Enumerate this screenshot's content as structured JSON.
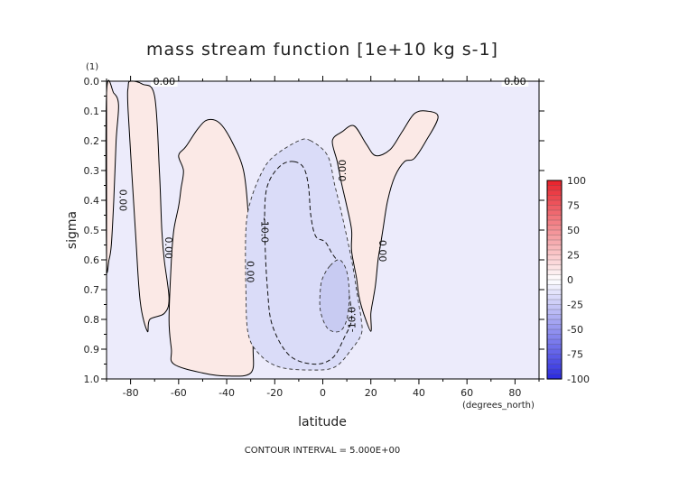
{
  "chart_data": {
    "type": "heatmap",
    "title": "mass stream function [1e+10 kg s-1]",
    "xlabel": "latitude",
    "ylabel": "sigma",
    "x_units": "(degrees_north)",
    "y_units": "(1)",
    "xlim": [
      -90,
      90
    ],
    "ylim": [
      1.0,
      0.0
    ],
    "x_ticks": [
      -80,
      -60,
      -40,
      -20,
      0,
      20,
      40,
      60,
      80
    ],
    "x_tick_labels": [
      "-80",
      "-60",
      "-40",
      "-20",
      "0",
      "20",
      "40",
      "60",
      "80"
    ],
    "y_ticks": [
      0.0,
      0.1,
      0.2,
      0.3,
      0.4,
      0.5,
      0.6,
      0.7,
      0.8,
      0.9,
      1.0
    ],
    "y_tick_labels": [
      "0.0",
      "0.1",
      "0.2",
      "0.3",
      "0.4",
      "0.5",
      "0.6",
      "0.7",
      "0.8",
      "0.9",
      "1.0"
    ],
    "background_color": "#ecebfb",
    "contour_interval_text": "CONTOUR INTERVAL = 5.000E+00",
    "colorbar": {
      "min": -100,
      "max": 100,
      "levels": [
        100,
        75,
        50,
        25,
        0,
        -25,
        -50,
        -75,
        -100
      ],
      "labels": [
        "100",
        "75",
        "50",
        "25",
        "0",
        "-25",
        "-50",
        "-75",
        "-100"
      ],
      "positive_color": "#e8202a",
      "negative_color": "#2a2ae0",
      "zero_color": "#ffffff"
    },
    "contours": [
      {
        "level": 0,
        "shape": "cell-south-edge",
        "points": [
          [
            -90,
            0.04
          ],
          [
            -87,
            0.04
          ],
          [
            -85,
            0.08
          ],
          [
            -86,
            0.2
          ],
          [
            -87,
            0.4
          ],
          [
            -88,
            0.55
          ],
          [
            -89,
            0.6
          ],
          [
            -90,
            0.6
          ]
        ]
      },
      {
        "level": 0,
        "shape": "cell-south",
        "points": [
          [
            -80,
            0.0
          ],
          [
            -75,
            0.01
          ],
          [
            -70,
            0.05
          ],
          [
            -68,
            0.3
          ],
          [
            -67,
            0.5
          ],
          [
            -66,
            0.6
          ],
          [
            -64,
            0.73
          ],
          [
            -66,
            0.78
          ],
          [
            -72,
            0.8
          ],
          [
            -73,
            0.84
          ],
          [
            -76,
            0.74
          ],
          [
            -78,
            0.5
          ],
          [
            -81,
            0.1
          ],
          [
            -81,
            0.02
          ]
        ]
      },
      {
        "level": 0,
        "shape": "cell-midlat",
        "points": [
          [
            -60,
            0.25
          ],
          [
            -57,
            0.22
          ],
          [
            -52,
            0.16
          ],
          [
            -48,
            0.13
          ],
          [
            -43,
            0.14
          ],
          [
            -38,
            0.2
          ],
          [
            -33,
            0.3
          ],
          [
            -31,
            0.45
          ],
          [
            -30,
            0.6
          ],
          [
            -30,
            0.75
          ],
          [
            -29,
            0.9
          ],
          [
            -30,
            0.98
          ],
          [
            -40,
            0.99
          ],
          [
            -50,
            0.98
          ],
          [
            -62,
            0.95
          ],
          [
            -63,
            0.9
          ],
          [
            -64,
            0.8
          ],
          [
            -63,
            0.6
          ],
          [
            -62,
            0.5
          ],
          [
            -60,
            0.42
          ],
          [
            -59,
            0.36
          ],
          [
            -58,
            0.3
          ]
        ]
      },
      {
        "level": 0,
        "shape": "cell-north",
        "points": [
          [
            4,
            0.2
          ],
          [
            8,
            0.17
          ],
          [
            13,
            0.15
          ],
          [
            18,
            0.21
          ],
          [
            22,
            0.25
          ],
          [
            28,
            0.23
          ],
          [
            33,
            0.17
          ],
          [
            38,
            0.11
          ],
          [
            43,
            0.1
          ],
          [
            48,
            0.12
          ],
          [
            43,
            0.2
          ],
          [
            38,
            0.26
          ],
          [
            34,
            0.27
          ],
          [
            30,
            0.32
          ],
          [
            27,
            0.4
          ],
          [
            25,
            0.5
          ],
          [
            24,
            0.55
          ],
          [
            23,
            0.6
          ],
          [
            22,
            0.68
          ],
          [
            21,
            0.73
          ],
          [
            20,
            0.78
          ],
          [
            20,
            0.84
          ],
          [
            17,
            0.78
          ],
          [
            15,
            0.72
          ],
          [
            14,
            0.66
          ],
          [
            12,
            0.57
          ],
          [
            12,
            0.5
          ],
          [
            10,
            0.42
          ],
          [
            8,
            0.35
          ],
          [
            6,
            0.27
          ]
        ]
      },
      {
        "level": -5,
        "shape": "hadley-outer",
        "points": [
          [
            -5,
            0.2
          ],
          [
            -10,
            0.2
          ],
          [
            -20,
            0.25
          ],
          [
            -25,
            0.3
          ],
          [
            -30,
            0.4
          ],
          [
            -32,
            0.5
          ],
          [
            -32,
            0.7
          ],
          [
            -31,
            0.85
          ],
          [
            -26,
            0.92
          ],
          [
            -18,
            0.96
          ],
          [
            -5,
            0.97
          ],
          [
            5,
            0.96
          ],
          [
            12,
            0.9
          ],
          [
            16,
            0.85
          ],
          [
            16,
            0.8
          ],
          [
            14,
            0.7
          ],
          [
            12,
            0.6
          ],
          [
            8,
            0.45
          ],
          [
            5,
            0.35
          ],
          [
            2,
            0.25
          ]
        ]
      },
      {
        "level": -10,
        "shape": "hadley-core",
        "points": [
          [
            -12,
            0.27
          ],
          [
            -17,
            0.28
          ],
          [
            -22,
            0.33
          ],
          [
            -24,
            0.4
          ],
          [
            -24,
            0.55
          ],
          [
            -23,
            0.7
          ],
          [
            -21,
            0.82
          ],
          [
            -14,
            0.92
          ],
          [
            -4,
            0.95
          ],
          [
            4,
            0.93
          ],
          [
            9,
            0.86
          ],
          [
            12,
            0.8
          ],
          [
            11,
            0.72
          ],
          [
            9,
            0.64
          ],
          [
            4,
            0.58
          ],
          [
            1,
            0.54
          ],
          [
            -3,
            0.52
          ],
          [
            -5,
            0.45
          ],
          [
            -6,
            0.35
          ],
          [
            -8,
            0.29
          ]
        ]
      },
      {
        "level": -15,
        "shape": "hadley-max",
        "points": [
          [
            3,
            0.62
          ],
          [
            7,
            0.6
          ],
          [
            10,
            0.64
          ],
          [
            11,
            0.72
          ],
          [
            10,
            0.8
          ],
          [
            7,
            0.84
          ],
          [
            2,
            0.83
          ],
          [
            -1,
            0.77
          ],
          [
            -1,
            0.7
          ],
          [
            0,
            0.66
          ]
        ]
      }
    ],
    "contour_labels": [
      {
        "text": "0.00",
        "x": -66,
        "y": 0.0,
        "angle": 0
      },
      {
        "text": "0.00",
        "x": 80,
        "y": 0.0,
        "angle": 0
      },
      {
        "text": "0.00",
        "x": -83,
        "y": 0.4,
        "angle": 90
      },
      {
        "text": "0.00",
        "x": -64,
        "y": 0.56,
        "angle": 90
      },
      {
        "text": "0.00",
        "x": -30,
        "y": 0.64,
        "angle": 90
      },
      {
        "text": "-10.0",
        "x": -24,
        "y": 0.5,
        "angle": 90
      },
      {
        "text": "0.00",
        "x": 8,
        "y": 0.3,
        "angle": -90
      },
      {
        "text": "0.00",
        "x": 25,
        "y": 0.57,
        "angle": 90
      },
      {
        "text": "-10.0",
        "x": 12,
        "y": 0.8,
        "angle": -90
      }
    ]
  }
}
